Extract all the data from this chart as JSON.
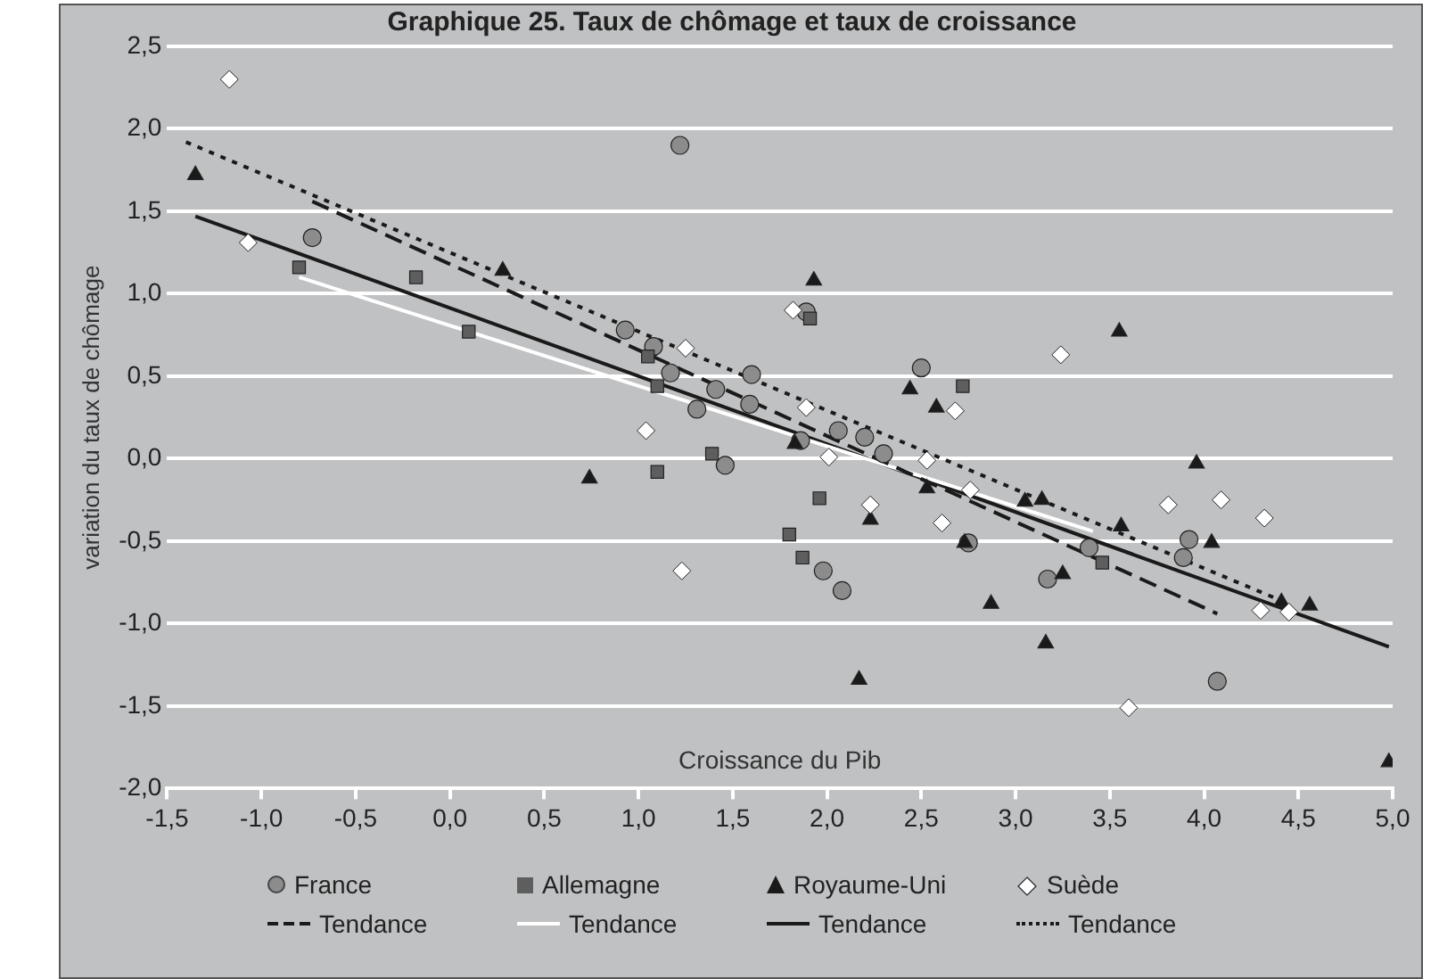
{
  "chart_data": {
    "type": "scatter",
    "title": "Graphique 25. Taux de chômage et taux de croissance",
    "xlabel": "Croissance du Pib",
    "ylabel": "variation du taux de chômage",
    "xlim": [
      -1.5,
      5.0
    ],
    "ylim": [
      -2.0,
      2.5
    ],
    "xticks": [
      {
        "value": -1.5,
        "label": "-1,5"
      },
      {
        "value": -1.0,
        "label": "-1,0"
      },
      {
        "value": -0.5,
        "label": "-0,5"
      },
      {
        "value": 0,
        "label": "0,0"
      },
      {
        "value": 0.5,
        "label": "0,5"
      },
      {
        "value": 1.0,
        "label": "1,0"
      },
      {
        "value": 1.5,
        "label": "1,5"
      },
      {
        "value": 2.0,
        "label": "2,0"
      },
      {
        "value": 2.5,
        "label": "2,5"
      },
      {
        "value": 3.0,
        "label": "3,0"
      },
      {
        "value": 3.5,
        "label": "3,5"
      },
      {
        "value": 4.0,
        "label": "4,0"
      },
      {
        "value": 4.5,
        "label": "4,5"
      },
      {
        "value": 5.0,
        "label": "5,0"
      }
    ],
    "yticks": [
      {
        "value": -2.0,
        "label": "-2,0"
      },
      {
        "value": -1.5,
        "label": "-1,5"
      },
      {
        "value": -1.0,
        "label": "-1,0"
      },
      {
        "value": -0.5,
        "label": "-0,5"
      },
      {
        "value": 0,
        "label": "0,0"
      },
      {
        "value": 0.5,
        "label": "0,5"
      },
      {
        "value": 1.0,
        "label": "1,0"
      },
      {
        "value": 1.5,
        "label": "1,5"
      },
      {
        "value": 2.0,
        "label": "2,0"
      },
      {
        "value": 2.5,
        "label": "2,5"
      }
    ],
    "grid": "y",
    "legend": "bottom",
    "series": [
      {
        "name": "France",
        "type": "scatter",
        "marker": "circle",
        "color": "#8c8c8c",
        "x": [
          -0.73,
          1.22,
          0.93,
          1.08,
          1.17,
          1.6,
          1.41,
          1.59,
          1.31,
          2.06,
          2.2,
          1.86,
          2.3,
          1.46,
          1.98,
          2.08,
          1.89,
          2.5,
          2.75,
          3.39,
          3.92,
          3.89,
          3.17,
          4.07
        ],
        "values": [
          1.34,
          1.9,
          0.78,
          0.68,
          0.52,
          0.51,
          0.42,
          0.33,
          0.3,
          0.17,
          0.13,
          0.11,
          0.03,
          -0.04,
          -0.68,
          -0.8,
          0.89,
          0.55,
          -0.51,
          -0.54,
          -0.49,
          -0.6,
          -0.73,
          -1.35
        ]
      },
      {
        "name": "Allemagne",
        "type": "scatter",
        "marker": "square",
        "color": "#5e5e5e",
        "x": [
          -0.8,
          -0.18,
          0.1,
          1.91,
          1.05,
          1.1,
          1.39,
          1.1,
          1.96,
          1.8,
          1.87,
          2.72,
          3.46
        ],
        "values": [
          1.16,
          1.1,
          0.77,
          0.85,
          0.62,
          0.44,
          0.03,
          -0.08,
          -0.24,
          -0.46,
          -0.6,
          0.44,
          -0.63
        ]
      },
      {
        "name": "Royaume-Uni",
        "type": "scatter",
        "marker": "triangle",
        "color": "#1a1a1a",
        "x": [
          -1.35,
          0.28,
          1.93,
          1.83,
          0.74,
          2.53,
          2.23,
          2.73,
          2.17,
          2.87,
          2.44,
          2.58,
          3.55,
          3.96,
          3.05,
          3.14,
          3.56,
          4.04,
          3.25,
          3.16,
          4.41,
          4.56,
          4.98
        ],
        "values": [
          1.72,
          1.14,
          1.08,
          0.09,
          -0.12,
          -0.18,
          -0.37,
          -0.51,
          -1.34,
          -0.88,
          0.42,
          0.31,
          0.77,
          -0.03,
          -0.26,
          -0.25,
          -0.41,
          -0.51,
          -0.7,
          -1.12,
          -0.87,
          -0.89,
          -1.84
        ]
      },
      {
        "name": "Suède",
        "type": "scatter",
        "marker": "diamond",
        "color": "#ffffff",
        "x": [
          -1.17,
          -1.07,
          1.82,
          1.25,
          1.89,
          1.04,
          2.01,
          2.53,
          2.23,
          2.61,
          1.23,
          2.68,
          2.76,
          3.24,
          3.81,
          4.09,
          4.32,
          3.6,
          4.3,
          4.45
        ],
        "values": [
          2.3,
          1.31,
          0.9,
          0.67,
          0.31,
          0.17,
          0.01,
          -0.01,
          -0.28,
          -0.39,
          -0.68,
          0.29,
          -0.19,
          0.63,
          -0.28,
          -0.25,
          -0.36,
          -1.51,
          -0.92,
          -0.93
        ]
      },
      {
        "name": "Tendance",
        "type": "line",
        "marker": "none",
        "line_style": "dashed",
        "color": "#1a1a1a",
        "x": [
          -0.73,
          4.07
        ],
        "values": [
          1.56,
          -0.94
        ]
      },
      {
        "name": "Tendance",
        "type": "line",
        "marker": "none",
        "line_style": "solid",
        "color": "#ffffff",
        "x": [
          -0.8,
          3.41
        ],
        "values": [
          1.1,
          -0.44
        ]
      },
      {
        "name": "Tendance",
        "type": "line",
        "marker": "none",
        "line_style": "solid",
        "color": "#1a1a1a",
        "x": [
          -1.35,
          4.98
        ],
        "values": [
          1.47,
          -1.14
        ]
      },
      {
        "name": "Tendance",
        "type": "line",
        "marker": "none",
        "line_style": "dotted",
        "color": "#1a1a1a",
        "x": [
          -1.4,
          4.45
        ],
        "values": [
          1.92,
          -0.88
        ]
      }
    ]
  }
}
